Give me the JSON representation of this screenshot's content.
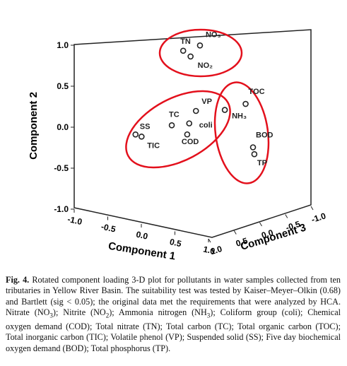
{
  "chart_data": {
    "type": "scatter3d",
    "xlabel": "Component 1",
    "ylabel": "Component 2",
    "zlabel": "Component 3",
    "labels": [
      "TN",
      "NO₂",
      "NO₃",
      "SS",
      "TIC",
      "TC",
      "VP",
      "coli",
      "COD",
      "NH₃",
      "TOC",
      "BOD",
      "TP"
    ],
    "x": [
      -0.14,
      -0.03,
      0.11,
      -0.85,
      -0.76,
      -0.31,
      0.05,
      -0.05,
      -0.08,
      0.48,
      0.79,
      0.9,
      0.92
    ],
    "y": [
      0.89,
      0.84,
      1.0,
      -0.26,
      -0.27,
      -0.05,
      0.19,
      0.02,
      -0.12,
      0.28,
      0.41,
      -0.1,
      -0.18
    ],
    "z": [
      0,
      0,
      0,
      0,
      0,
      0,
      0,
      0,
      0,
      0,
      0,
      0,
      0
    ],
    "xlim": [
      -1,
      1
    ],
    "ylim": [
      -1,
      1
    ],
    "zlim": [
      -1,
      1
    ],
    "xticks": [
      {
        "value": -1,
        "label": "-1.0"
      },
      -0.5,
      {
        "value": 0,
        "label": "0.0"
      },
      0.5,
      {
        "value": 1,
        "label": "1.0"
      }
    ],
    "yticks": [
      {
        "value": -1,
        "label": "-1.0"
      },
      -0.5,
      {
        "value": 0,
        "label": "0.0"
      },
      0.5,
      {
        "value": 1,
        "label": "1.0"
      }
    ],
    "zticks": [
      {
        "value": 1,
        "label": "1.0"
      },
      0.5,
      {
        "value": 0,
        "label": "0.0"
      },
      -0.5,
      {
        "value": -1,
        "label": "-1.0"
      }
    ],
    "color": "#222222"
  },
  "caption": {
    "label": "Fig. 4.",
    "segments": [
      "Rotated component loading 3-D plot for pollutants in water samples collected from ten tributaries in Yellow River Basin. The suitability test was tested by Kaiser–Meyer–Olkin (0.68) and Bartlett (sig < 0.05); the original data met the requirements that were analyzed by HCA. Nitrate (NO",
      "3",
      "); Nitrite (NO",
      "2",
      "); Ammonia nitrogen (NH",
      "3",
      "); Coliform group (coli); Chemical oxygen demand (COD); Total nitrate (TN); Total carbon (TC); Total organic carbon (TOC); Total inorganic carbon (TIC); Volatile phenol (VP); Suspended solid (SS); Five day biochemical oxygen demand (BOD); Total phosphorus (TP)."
    ]
  }
}
